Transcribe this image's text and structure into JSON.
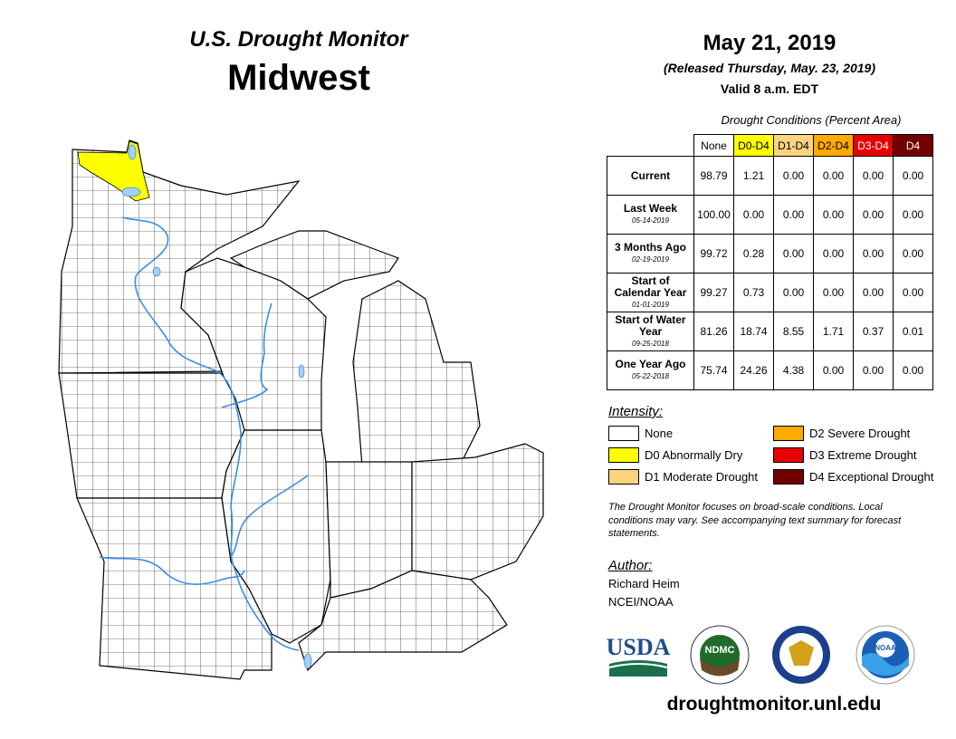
{
  "header": {
    "title": "U.S. Drought Monitor",
    "region": "Midwest",
    "date": "May 21, 2019",
    "released": "(Released Thursday, May. 23, 2019)",
    "valid": "Valid 8 a.m. EDT"
  },
  "table": {
    "caption": "Drought Conditions (Percent Area)",
    "columns": [
      {
        "label": "None",
        "color": "#ffffff",
        "text_color": "#000000"
      },
      {
        "label": "D0-D4",
        "color": "#ffff00",
        "text_color": "#000000"
      },
      {
        "label": "D1-D4",
        "color": "#fcd37f",
        "text_color": "#000000"
      },
      {
        "label": "D2-D4",
        "color": "#ffaa00",
        "text_color": "#000000"
      },
      {
        "label": "D3-D4",
        "color": "#e60000",
        "text_color": "#ffffff"
      },
      {
        "label": "D4",
        "color": "#730000",
        "text_color": "#ffffff"
      }
    ],
    "rows": [
      {
        "label": "Current",
        "values": [
          "98.79",
          "1.21",
          "0.00",
          "0.00",
          "0.00",
          "0.00"
        ]
      },
      {
        "label": "Last Week",
        "date": "05-14-2019",
        "values": [
          "100.00",
          "0.00",
          "0.00",
          "0.00",
          "0.00",
          "0.00"
        ]
      },
      {
        "label": "3 Months Ago",
        "date": "02-19-2019",
        "values": [
          "99.72",
          "0.28",
          "0.00",
          "0.00",
          "0.00",
          "0.00"
        ]
      },
      {
        "label": "Start of Calendar Year",
        "date": "01-01-2019",
        "values": [
          "99.27",
          "0.73",
          "0.00",
          "0.00",
          "0.00",
          "0.00"
        ]
      },
      {
        "label": "Start of Water Year",
        "date": "09-25-2018",
        "values": [
          "81.26",
          "18.74",
          "8.55",
          "1.71",
          "0.37",
          "0.01"
        ]
      },
      {
        "label": "One Year Ago",
        "date": "05-22-2018",
        "values": [
          "75.74",
          "24.26",
          "4.38",
          "0.00",
          "0.00",
          "0.00"
        ]
      }
    ]
  },
  "legend": {
    "title": "Intensity:",
    "items": [
      {
        "label": "None",
        "color": "#ffffff"
      },
      {
        "label": "D0 Abnormally Dry",
        "color": "#ffff00"
      },
      {
        "label": "D1 Moderate Drought",
        "color": "#fcd37f"
      },
      {
        "label": "D2 Severe Drought",
        "color": "#ffaa00"
      },
      {
        "label": "D3 Extreme Drought",
        "color": "#e60000"
      },
      {
        "label": "D4 Exceptional Drought",
        "color": "#730000"
      }
    ]
  },
  "note": "The Drought Monitor focuses on broad-scale conditions. Local conditions may vary. See accompanying text summary for forecast statements.",
  "author": {
    "title": "Author:",
    "names": [
      "Richard Heim",
      "NCEI/NOAA"
    ]
  },
  "logos": [
    "USDA",
    "NDMC",
    "NOAA"
  ],
  "url": "droughtmonitor.unl.edu"
}
